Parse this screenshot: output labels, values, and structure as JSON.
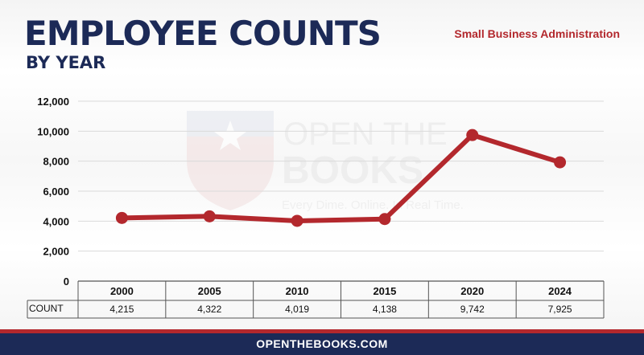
{
  "header": {
    "title": "EMPLOYEE COUNTS",
    "subtitle": "BY YEAR",
    "agency": "Small Business Administration"
  },
  "watermark": {
    "line1": "OPEN THE",
    "line2": "BOOKS",
    "tagline": "Every Dime. Online. In Real Time."
  },
  "footer": {
    "text": "OPENTHEBOOKS.COM"
  },
  "table": {
    "row_label": "COUNT"
  },
  "colors": {
    "line": "#b3282d",
    "navy": "#1c2a57"
  },
  "chart_data": {
    "type": "line",
    "categories": [
      "2000",
      "2005",
      "2010",
      "2015",
      "2020",
      "2024"
    ],
    "values": [
      4215,
      4322,
      4019,
      4138,
      9742,
      7925
    ],
    "value_labels": [
      "4,215",
      "4,322",
      "4,019",
      "4,138",
      "9,742",
      "7,925"
    ],
    "ylim": [
      0,
      12000
    ],
    "yticks": [
      0,
      2000,
      4000,
      6000,
      8000,
      10000,
      12000
    ],
    "ytick_labels": [
      "0",
      "2,000",
      "4,000",
      "6,000",
      "8,000",
      "10,000",
      "12,000"
    ],
    "grid": true,
    "xlabel": "",
    "ylabel": ""
  }
}
